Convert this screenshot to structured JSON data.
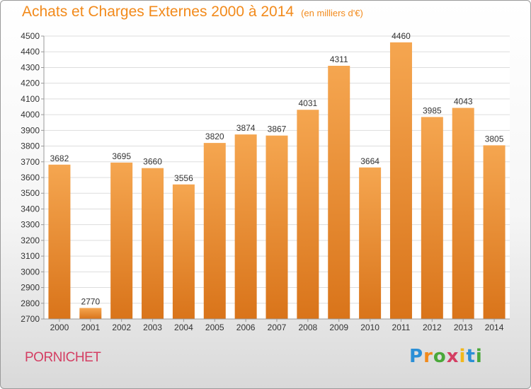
{
  "header": {
    "title": "Achats et Charges Externes 2000 à 2014",
    "subtitle": "(en milliers d'€)"
  },
  "footer": {
    "city": "PORNICHET",
    "logo_letters": [
      {
        "char": "P",
        "color": "#2b8fd6"
      },
      {
        "char": "r",
        "color": "#f28a1b"
      },
      {
        "char": "o",
        "color": "#4aa83a"
      },
      {
        "char": "x",
        "color": "#d43e63"
      },
      {
        "char": "i",
        "color": "#f2b81b"
      },
      {
        "char": "t",
        "color": "#2b8fd6"
      },
      {
        "char": "i",
        "color": "#4aa83a"
      }
    ]
  },
  "chart_data": {
    "type": "bar",
    "categories": [
      "2000",
      "2001",
      "2002",
      "2003",
      "2004",
      "2005",
      "2006",
      "2007",
      "2008",
      "2009",
      "2010",
      "2011",
      "2012",
      "2013",
      "2014"
    ],
    "values": [
      3682,
      2770,
      3695,
      3660,
      3556,
      3820,
      3874,
      3867,
      4031,
      4311,
      3664,
      4460,
      3985,
      4043,
      3805
    ],
    "title": "Achats et Charges Externes 2000 à 2014",
    "subtitle": "(en milliers d'€)",
    "ylim": [
      2700,
      4500
    ],
    "yticks": [
      2700,
      2800,
      2900,
      3000,
      3100,
      3200,
      3300,
      3400,
      3500,
      3600,
      3700,
      3800,
      3900,
      4000,
      4100,
      4200,
      4300,
      4400,
      4500
    ],
    "grid": true,
    "bar_color_top": "#f5a650",
    "bar_color_bottom": "#d9741a",
    "grid_color": "#dddddd"
  }
}
